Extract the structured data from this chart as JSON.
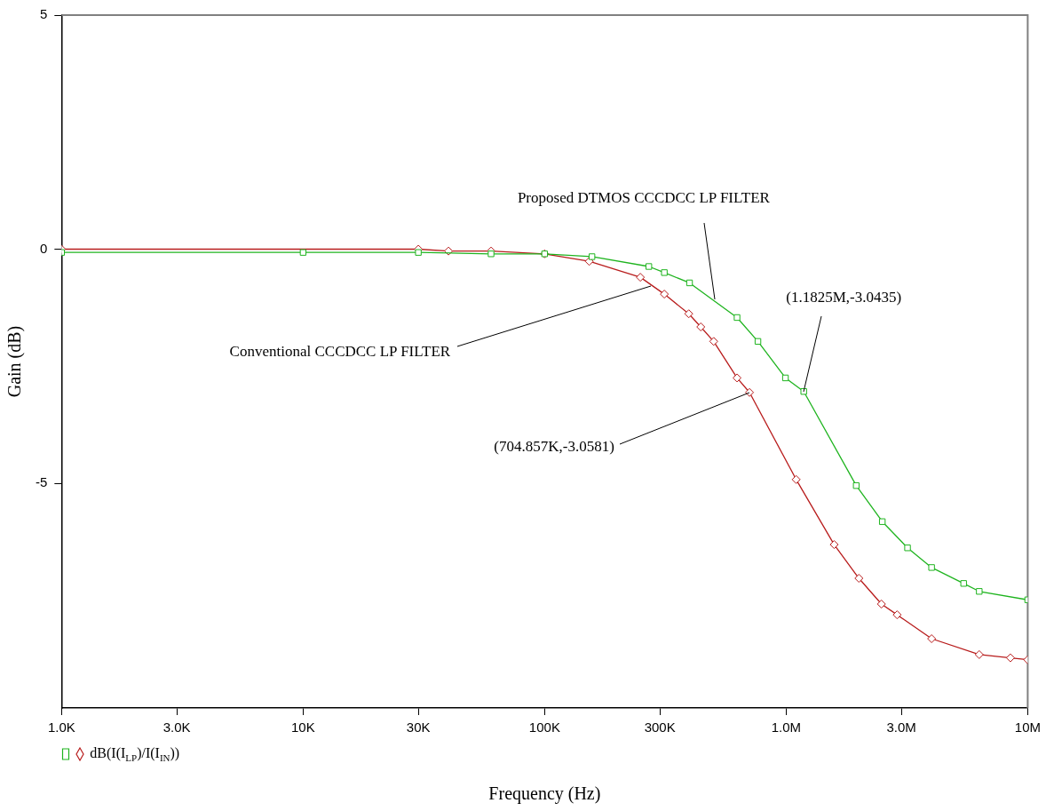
{
  "chart_data": {
    "type": "line",
    "xlabel": "Frequency (Hz)",
    "ylabel": "Gain (dB)",
    "log": "x",
    "grid": false,
    "line_style": "solid",
    "xlim": [
      1000,
      10000000
    ],
    "xticks": [
      {
        "value": 1000,
        "label": "1.0K"
      },
      {
        "value": 3000,
        "label": "3.0K"
      },
      {
        "value": 10000,
        "label": "10K"
      },
      {
        "value": 30000,
        "label": "30K"
      },
      {
        "value": 100000,
        "label": "100K"
      },
      {
        "value": 300000,
        "label": "300K"
      },
      {
        "value": 1000000,
        "label": "1.0M"
      },
      {
        "value": 3000000,
        "label": "3.0M"
      },
      {
        "value": 10000000,
        "label": "10M"
      }
    ],
    "ylim": [
      -9.8,
      5
    ],
    "yticks": [
      -5,
      0,
      5
    ],
    "series": [
      {
        "color": "#1fb41f",
        "marker": "square",
        "x": [
          1000,
          10000,
          30000,
          60000,
          100000,
          157000,
          270000,
          313000,
          398000,
          626000,
          764000,
          993000,
          1182500,
          1950000,
          2500000,
          3180000,
          4000000,
          5430000,
          6300000,
          10000000
        ],
        "values": [
          -0.07,
          -0.07,
          -0.07,
          -0.1,
          -0.1,
          -0.16,
          -0.37,
          -0.5,
          -0.72,
          -1.46,
          -1.97,
          -2.75,
          -3.04,
          -5.05,
          -5.82,
          -6.38,
          -6.8,
          -7.14,
          -7.31,
          -7.49
        ]
      },
      {
        "color": "#b81c1c",
        "marker": "diamond",
        "x": [
          1000,
          30000,
          40000,
          60000,
          100000,
          153000,
          249000,
          313000,
          395000,
          443000,
          501000,
          626000,
          704857,
          1100000,
          1580000,
          2000000,
          2480000,
          2880000,
          4000000,
          6300000,
          8480000,
          10000000
        ],
        "values": [
          0,
          0,
          -0.04,
          -0.04,
          -0.1,
          -0.26,
          -0.6,
          -0.96,
          -1.38,
          -1.66,
          -1.97,
          -2.75,
          -3.06,
          -4.92,
          -6.31,
          -7.03,
          -7.58,
          -7.81,
          -8.32,
          -8.66,
          -8.73,
          -8.77
        ]
      }
    ],
    "annotations": [
      "dB(I(I$_{LP}$)/I(I$_{IN}$))",
      {
        "text": "Proposed DTMOS CCCDCC LP FILTER",
        "x": 506000,
        "y": -1.07
      },
      {
        "text": "Conventional CCCDCC LP FILTER",
        "x": 275000,
        "y": -0.78
      },
      {
        "text": "(1.1825M,-3.0435)",
        "x": 1182500,
        "y": -3.0435
      },
      {
        "text": "(704.857K,-3.0581)",
        "x": 704857,
        "y": -3.0581
      }
    ]
  }
}
